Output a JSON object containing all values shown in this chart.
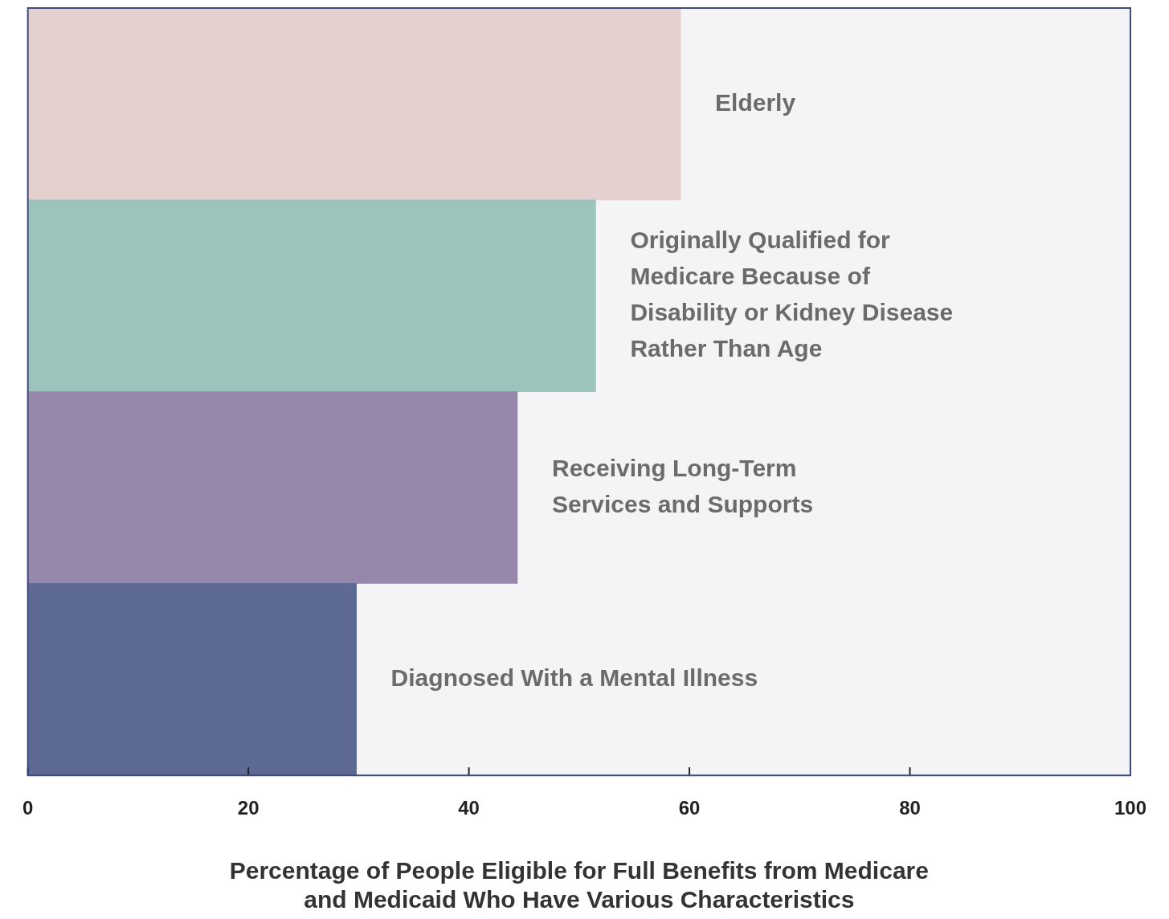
{
  "chart_data": {
    "type": "bar",
    "orientation": "horizontal",
    "xlabel": "Percentage of People Eligible for Full Benefits from Medicare and Medicaid Who Have Various Characteristics",
    "categories": [
      "Elderly",
      "Originally Qualified for\nMedicare Because of\nDisability or Kidney Disease\nRather Than Age",
      "Receiving Long-Term\nServices and Supports",
      "Diagnosed With a Mental Illness"
    ],
    "values": [
      59.2,
      51.5,
      44.4,
      29.8
    ],
    "colors": [
      "#e5d0d0",
      "#9dc4bc",
      "#9787aa",
      "#5c6a94"
    ],
    "xlim": [
      0,
      100
    ],
    "xticks": [
      0,
      20,
      40,
      60,
      80,
      100
    ],
    "grid": false,
    "legend": false
  }
}
